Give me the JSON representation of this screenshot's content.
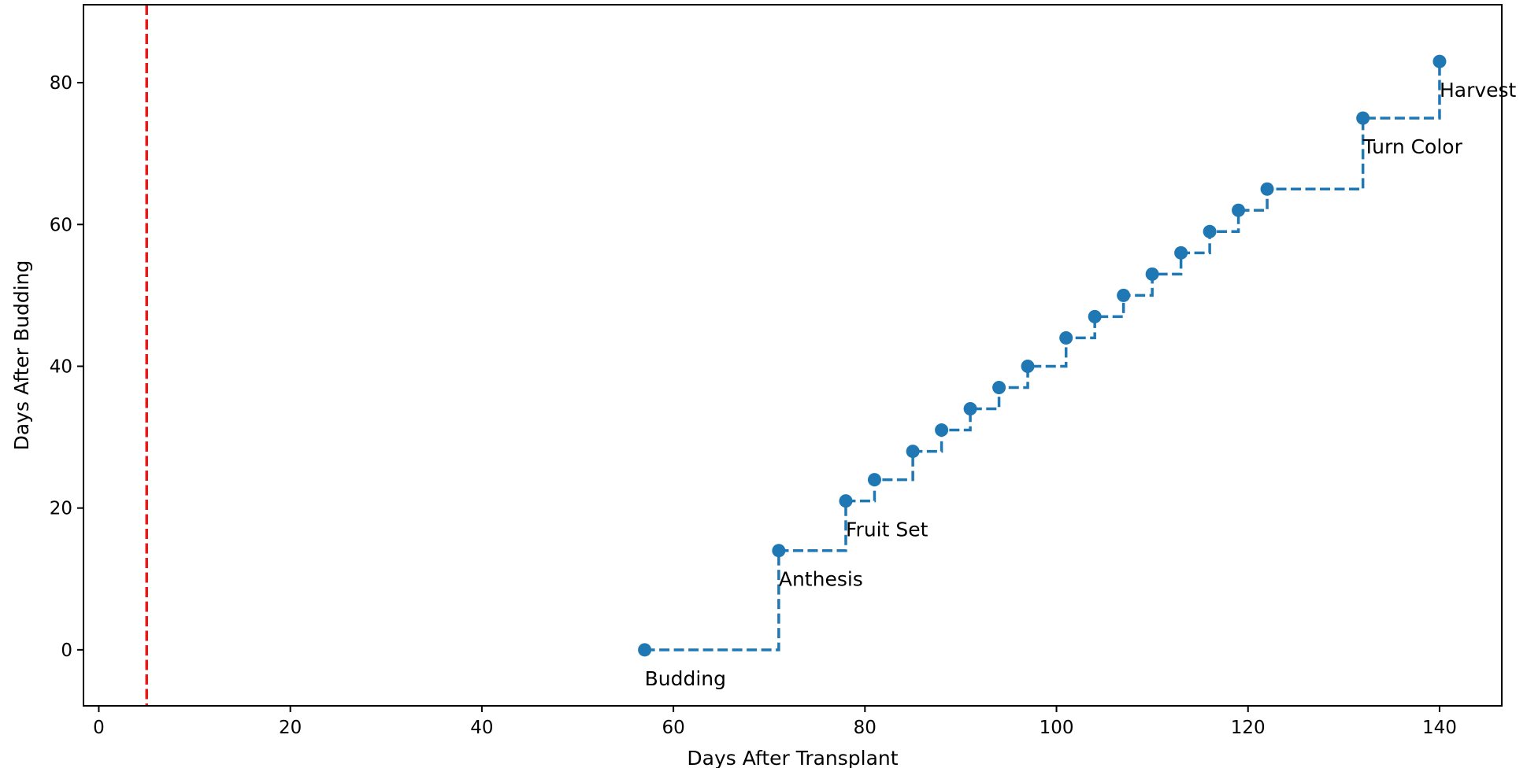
{
  "chart_data": {
    "type": "line",
    "title": "",
    "xlabel": "Days After Transplant",
    "ylabel": "Days After Budding",
    "xlim": [
      -1.6,
      146.5
    ],
    "ylim": [
      -7.9,
      91
    ],
    "xticks": [
      0,
      20,
      40,
      60,
      80,
      100,
      120,
      140
    ],
    "yticks": [
      0,
      20,
      40,
      60,
      80
    ],
    "grid": false,
    "step_style": "post",
    "series": [
      {
        "marker": "circle",
        "line_style": "dashed",
        "color": "#1f77b4",
        "x": [
          57,
          71,
          78,
          81,
          85,
          88,
          91,
          94,
          97,
          101,
          104,
          107,
          110,
          113,
          116,
          119,
          122,
          132,
          140
        ],
        "y": [
          0,
          14,
          21,
          24,
          28,
          31,
          34,
          37,
          40,
          44,
          47,
          50,
          53,
          56,
          59,
          62,
          65,
          75,
          83
        ]
      }
    ],
    "vlines": [
      {
        "x": 5,
        "color": "#e41a1c",
        "line_style": "dashed"
      }
    ],
    "annotations": [
      {
        "text": "Budding",
        "x": 57,
        "y": 0
      },
      {
        "text": "Anthesis",
        "x": 71,
        "y": 14
      },
      {
        "text": "Fruit Set",
        "x": 78,
        "y": 21
      },
      {
        "text": "Turn Color",
        "x": 132,
        "y": 75
      },
      {
        "text": "Harvest",
        "x": 140,
        "y": 83
      }
    ]
  }
}
